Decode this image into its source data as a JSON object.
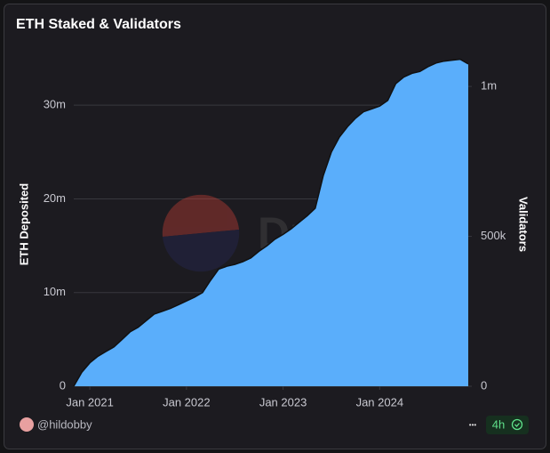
{
  "chart_data": {
    "type": "area",
    "title": "ETH Staked & Validators",
    "ylabel": "ETH Deposited",
    "y2label": "Validators",
    "watermark": "Dune",
    "x": [
      "2020-11",
      "2020-12",
      "2021-01",
      "2021-02",
      "2021-03",
      "2021-04",
      "2021-05",
      "2021-06",
      "2021-07",
      "2021-08",
      "2021-09",
      "2021-10",
      "2021-11",
      "2021-12",
      "2022-01",
      "2022-02",
      "2022-03",
      "2022-04",
      "2022-05",
      "2022-06",
      "2022-07",
      "2022-08",
      "2022-09",
      "2022-10",
      "2022-11",
      "2022-12",
      "2023-01",
      "2023-02",
      "2023-03",
      "2023-04",
      "2023-05",
      "2023-06",
      "2023-07",
      "2023-08",
      "2023-09",
      "2023-10",
      "2023-11",
      "2023-12",
      "2024-01",
      "2024-02",
      "2024-03",
      "2024-04",
      "2024-05",
      "2024-06",
      "2024-07",
      "2024-08",
      "2024-09",
      "2024-10",
      "2024-11",
      "2024-12"
    ],
    "values": [
      0,
      1500000,
      2500000,
      3200000,
      3700000,
      4200000,
      5000000,
      5800000,
      6300000,
      7000000,
      7700000,
      8000000,
      8300000,
      8700000,
      9100000,
      9500000,
      10000000,
      11300000,
      12500000,
      12800000,
      13000000,
      13300000,
      13700000,
      14400000,
      15000000,
      15700000,
      16200000,
      16800000,
      17500000,
      18200000,
      19000000,
      22500000,
      25000000,
      26600000,
      27700000,
      28600000,
      29300000,
      29600000,
      29900000,
      30500000,
      32300000,
      33000000,
      33400000,
      33600000,
      34100000,
      34500000,
      34700000,
      34800000,
      34900000,
      34400000
    ],
    "color": "#5aaefb",
    "xlim": [
      "2020-11",
      "2024-12"
    ],
    "xticks": [
      {
        "value": "2021-01",
        "label": "Jan 2021"
      },
      {
        "value": "2022-01",
        "label": "Jan 2022"
      },
      {
        "value": "2023-01",
        "label": "Jan 2023"
      },
      {
        "value": "2024-01",
        "label": "Jan 2024"
      }
    ],
    "ylim": [
      0,
      36000000
    ],
    "yticks": [
      0,
      {
        "value": 10000000,
        "label": "10m"
      },
      {
        "value": 20000000,
        "label": "20m"
      },
      {
        "value": 30000000,
        "label": "30m"
      }
    ],
    "y2lim": [
      0,
      1125000
    ],
    "y2ticks": [
      0,
      {
        "value": 500000,
        "label": "500k"
      },
      {
        "value": 1000000,
        "label": "1m"
      }
    ],
    "grid": true
  },
  "footer": {
    "author": "@hildobby",
    "menu": "•••",
    "freshness": "4h"
  }
}
